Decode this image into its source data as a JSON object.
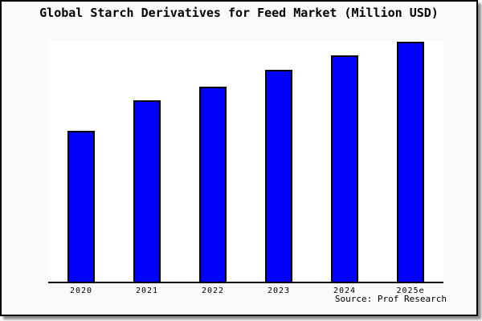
{
  "chart_data": {
    "type": "bar",
    "title": "Global Starch Derivatives for Feed Market (Million USD)",
    "categories": [
      "2020",
      "2021",
      "2022",
      "2023",
      "2024",
      "2025e"
    ],
    "values": [
      62.5,
      75.1,
      80.7,
      87.7,
      93.7,
      99.3
    ],
    "value_note": "y-axis shows no tick labels; values estimated as percent of plot height",
    "xlabel": "",
    "ylabel": "",
    "ylim": [
      0,
      100
    ],
    "gridlines": false,
    "legend": "none",
    "bar_color": "#0000ff",
    "bar_border_color": "#000000",
    "plot_background": "#ffffff",
    "figure_background": "#fafafa"
  },
  "source": {
    "text": "Source: Prof Research"
  }
}
